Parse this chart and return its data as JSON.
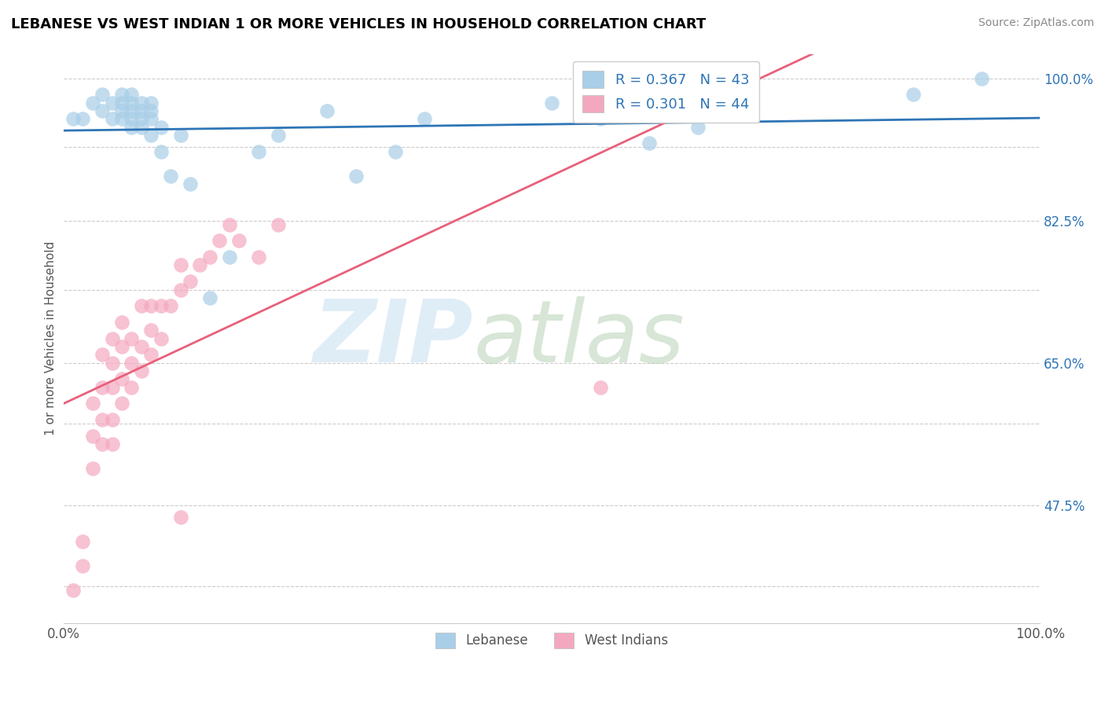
{
  "title": "LEBANESE VS WEST INDIAN 1 OR MORE VEHICLES IN HOUSEHOLD CORRELATION CHART",
  "source": "Source: ZipAtlas.com",
  "ylabel": "1 or more Vehicles in Household",
  "xlim": [
    0.0,
    1.0
  ],
  "ylim": [
    0.33,
    1.03
  ],
  "x_ticks": [
    0.0,
    0.1,
    0.2,
    0.3,
    0.4,
    0.5,
    0.6,
    0.7,
    0.8,
    0.9,
    1.0
  ],
  "x_tick_labels": [
    "0.0%",
    "",
    "",
    "",
    "",
    "",
    "",
    "",
    "",
    "",
    "100.0%"
  ],
  "y_ticks": [
    0.375,
    0.475,
    0.575,
    0.65,
    0.74,
    0.825,
    0.915,
    1.0
  ],
  "y_tick_labels": [
    "",
    "47.5%",
    "",
    "65.0%",
    "",
    "82.5%",
    "",
    "100.0%"
  ],
  "R_lebanese": 0.367,
  "N_lebanese": 43,
  "R_west_indian": 0.301,
  "N_west_indian": 44,
  "blue_color": "#A8CEE8",
  "pink_color": "#F4A8C0",
  "blue_line_color": "#2E75B6",
  "pink_line_color": "#E8607A",
  "legend_text_color": "#2E75B6",
  "lebanese_x": [
    0.01,
    0.02,
    0.03,
    0.04,
    0.04,
    0.05,
    0.05,
    0.06,
    0.06,
    0.06,
    0.06,
    0.07,
    0.07,
    0.07,
    0.07,
    0.07,
    0.08,
    0.08,
    0.08,
    0.08,
    0.09,
    0.09,
    0.09,
    0.09,
    0.1,
    0.1,
    0.11,
    0.12,
    0.13,
    0.15,
    0.17,
    0.2,
    0.22,
    0.27,
    0.3,
    0.34,
    0.37,
    0.5,
    0.55,
    0.6,
    0.65,
    0.87,
    0.94
  ],
  "lebanese_y": [
    0.95,
    0.95,
    0.97,
    0.96,
    0.98,
    0.95,
    0.97,
    0.95,
    0.96,
    0.97,
    0.98,
    0.94,
    0.95,
    0.96,
    0.97,
    0.98,
    0.94,
    0.95,
    0.96,
    0.97,
    0.93,
    0.95,
    0.96,
    0.97,
    0.91,
    0.94,
    0.88,
    0.93,
    0.87,
    0.73,
    0.78,
    0.91,
    0.93,
    0.96,
    0.88,
    0.91,
    0.95,
    0.97,
    0.95,
    0.92,
    0.94,
    0.98,
    1.0
  ],
  "west_indian_x": [
    0.01,
    0.02,
    0.02,
    0.03,
    0.03,
    0.03,
    0.04,
    0.04,
    0.04,
    0.04,
    0.05,
    0.05,
    0.05,
    0.05,
    0.05,
    0.06,
    0.06,
    0.06,
    0.06,
    0.07,
    0.07,
    0.07,
    0.08,
    0.08,
    0.08,
    0.09,
    0.09,
    0.09,
    0.1,
    0.1,
    0.11,
    0.12,
    0.12,
    0.13,
    0.14,
    0.15,
    0.16,
    0.17,
    0.18,
    0.2,
    0.22,
    0.12,
    0.55,
    0.6
  ],
  "west_indian_y": [
    0.37,
    0.4,
    0.43,
    0.52,
    0.56,
    0.6,
    0.55,
    0.58,
    0.62,
    0.66,
    0.55,
    0.58,
    0.62,
    0.65,
    0.68,
    0.6,
    0.63,
    0.67,
    0.7,
    0.62,
    0.65,
    0.68,
    0.64,
    0.67,
    0.72,
    0.66,
    0.69,
    0.72,
    0.68,
    0.72,
    0.72,
    0.74,
    0.77,
    0.75,
    0.77,
    0.78,
    0.8,
    0.82,
    0.8,
    0.78,
    0.82,
    0.46,
    0.62,
    0.96
  ]
}
